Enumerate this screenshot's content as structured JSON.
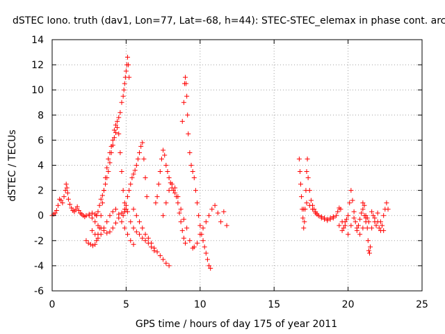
{
  "chart_data": {
    "type": "scatter",
    "title": "dSTEC Iono. truth (dav1, Lon=77, Lat=-68, h=44): STEC-STEC_elemax in phase cont. arc",
    "xlabel": "GPS time / hours of day 175 of year 2011",
    "ylabel": "dSTEC  / TECUs",
    "xlim": [
      0,
      25
    ],
    "ylim": [
      -6,
      14
    ],
    "xticks": [
      0,
      5,
      10,
      15,
      20,
      25
    ],
    "yticks": [
      -6,
      -4,
      -2,
      0,
      2,
      4,
      6,
      8,
      10,
      12,
      14
    ],
    "grid": true,
    "marker": "+",
    "color": "#ff0000",
    "series": [
      {
        "x": [
          0.0,
          0.1,
          0.2,
          0.3,
          0.4,
          0.5,
          0.6,
          0.7,
          0.8,
          0.9,
          0.95,
          1.0,
          1.05,
          1.1,
          1.2,
          1.3,
          1.4,
          1.5,
          1.6,
          1.7,
          1.8,
          1.9,
          2.0,
          2.1,
          2.2,
          2.3,
          2.5,
          2.7,
          2.9,
          3.0
        ],
        "y": [
          0.0,
          0.1,
          0.2,
          0.4,
          0.8,
          1.3,
          1.2,
          1.0,
          1.5,
          2.0,
          2.5,
          2.2,
          1.8,
          1.3,
          0.9,
          0.6,
          0.4,
          0.3,
          0.5,
          0.7,
          0.4,
          0.2,
          0.1,
          0.0,
          -0.1,
          0.0,
          0.1,
          0.2,
          0.1,
          0.0
        ]
      },
      {
        "x": [
          2.3,
          2.45,
          2.6,
          2.75,
          2.9,
          3.0,
          3.1,
          3.2,
          3.3,
          3.4,
          3.5,
          3.6,
          3.7,
          3.8,
          3.9,
          4.0,
          4.1,
          4.2,
          4.3,
          4.4,
          4.5,
          4.6,
          4.7,
          4.8,
          4.85,
          4.9,
          4.95,
          5.0,
          5.05,
          5.1,
          5.15,
          5.2
        ],
        "y": [
          -2.0,
          -2.2,
          -2.3,
          -2.4,
          -2.3,
          -2.0,
          -1.5,
          -1.0,
          0.0,
          1.0,
          2.0,
          3.0,
          3.8,
          4.5,
          5.0,
          5.5,
          6.0,
          6.8,
          7.2,
          7.5,
          7.8,
          8.2,
          9.0,
          9.5,
          10.0,
          10.5,
          11.0,
          11.5,
          12.0,
          12.6,
          12.0,
          11.0
        ]
      },
      {
        "x": [
          3.0,
          3.1,
          3.2,
          3.3,
          3.4,
          3.5,
          3.6,
          3.7,
          3.8,
          3.9,
          4.0,
          4.1,
          4.2,
          4.3,
          4.4,
          4.5,
          4.6,
          4.7,
          4.8,
          4.9,
          5.0
        ],
        "y": [
          0.0,
          0.3,
          0.8,
          1.3,
          1.6,
          2.0,
          2.5,
          3.0,
          3.5,
          4.2,
          5.0,
          5.6,
          6.2,
          6.6,
          7.0,
          6.5,
          5.0,
          3.5,
          2.0,
          1.0,
          0.5
        ]
      },
      {
        "x": [
          2.5,
          2.7,
          2.9,
          3.1,
          3.3,
          3.5,
          3.7,
          3.9,
          4.1,
          4.3,
          4.5,
          4.7,
          4.9,
          5.1,
          5.3,
          5.5,
          5.7,
          5.9,
          6.1,
          6.3,
          6.5,
          6.7,
          6.9
        ],
        "y": [
          0.0,
          -0.2,
          -0.5,
          -0.8,
          -1.0,
          -1.2,
          -1.4,
          -1.3,
          -1.0,
          -0.6,
          -0.2,
          0.2,
          0.5,
          0.3,
          -0.5,
          -1.0,
          -1.3,
          -1.5,
          -1.8,
          -2.0,
          -2.2,
          -2.5,
          -2.8
        ]
      },
      {
        "x": [
          2.7,
          2.9,
          3.1,
          3.3,
          3.5,
          3.7,
          3.9,
          4.1,
          4.3,
          4.5,
          4.7,
          4.9,
          5.1,
          5.3,
          5.5
        ],
        "y": [
          -1.2,
          -1.5,
          -1.8,
          -1.5,
          -1.0,
          -0.5,
          0.0,
          0.3,
          0.5,
          0.1,
          -0.5,
          -1.0,
          -1.5,
          -2.0,
          -2.3
        ]
      },
      {
        "x": [
          4.8,
          4.9,
          5.0,
          5.1,
          5.2,
          5.3,
          5.4,
          5.5,
          5.6,
          5.7,
          5.8,
          5.9,
          6.0,
          6.1,
          6.2,
          6.3,
          6.4
        ],
        "y": [
          0.0,
          0.3,
          0.8,
          1.5,
          2.0,
          2.5,
          3.0,
          3.3,
          3.6,
          4.0,
          4.5,
          5.0,
          5.5,
          5.8,
          4.5,
          3.0,
          1.5
        ]
      },
      {
        "x": [
          5.5,
          5.7,
          5.9,
          6.1,
          6.3,
          6.5,
          6.7,
          6.9,
          7.1,
          7.3,
          7.5,
          7.7,
          7.9
        ],
        "y": [
          0.5,
          0.0,
          -0.5,
          -1.0,
          -1.5,
          -1.8,
          -2.2,
          -2.6,
          -2.9,
          -3.2,
          -3.5,
          -3.8,
          -4.0
        ]
      },
      {
        "x": [
          7.0,
          7.1,
          7.2,
          7.3,
          7.4,
          7.5,
          7.6,
          7.7,
          7.8,
          7.9,
          8.0,
          8.1,
          8.2,
          8.3,
          8.4,
          8.5,
          8.6,
          8.7,
          8.8,
          8.9,
          9.0
        ],
        "y": [
          1.0,
          1.5,
          2.5,
          3.5,
          4.5,
          5.2,
          4.8,
          4.0,
          3.5,
          3.0,
          2.6,
          2.2,
          2.0,
          1.8,
          1.5,
          1.0,
          0.2,
          -0.5,
          -1.2,
          -1.8,
          -2.2
        ]
      },
      {
        "x": [
          7.5,
          7.7,
          7.9,
          8.1,
          8.3,
          8.5,
          8.7,
          8.9,
          9.1,
          9.3,
          9.5
        ],
        "y": [
          0.0,
          1.0,
          2.0,
          2.5,
          2.2,
          1.5,
          0.5,
          -0.3,
          -1.0,
          -2.0,
          -2.6
        ]
      },
      {
        "x": [
          8.8,
          8.9,
          8.95,
          9.0,
          9.05,
          9.1,
          9.15,
          9.2,
          9.3,
          9.4,
          9.5,
          9.6,
          9.7,
          9.8,
          9.9,
          10.0,
          10.1,
          10.2,
          10.3,
          10.4,
          10.5,
          10.6,
          10.7
        ],
        "y": [
          7.5,
          9.0,
          10.5,
          11.0,
          10.5,
          9.5,
          8.0,
          6.5,
          5.0,
          4.0,
          3.5,
          3.0,
          2.0,
          1.0,
          0.0,
          -0.8,
          -1.5,
          -2.0,
          -2.5,
          -3.0,
          -3.5,
          -4.0,
          -4.2
        ]
      },
      {
        "x": [
          9.6,
          9.8,
          10.0,
          10.2,
          10.4,
          10.6,
          10.8,
          11.0,
          11.2,
          11.4,
          11.6,
          11.8
        ],
        "y": [
          -2.5,
          -2.2,
          -1.5,
          -1.0,
          -0.5,
          0.0,
          0.5,
          0.8,
          0.2,
          -0.5,
          0.3,
          -0.8
        ]
      },
      {
        "x": [
          16.7,
          16.75,
          16.8,
          16.85,
          16.9,
          16.95,
          17.0,
          17.05,
          17.1,
          17.15,
          17.2,
          17.25,
          17.3,
          17.4,
          17.5,
          17.6,
          17.7,
          17.8,
          17.9,
          18.0,
          18.2,
          18.4,
          18.6,
          18.8,
          19.0
        ],
        "y": [
          4.5,
          3.5,
          2.5,
          1.5,
          0.5,
          -0.2,
          -1.0,
          -0.5,
          0.5,
          2.0,
          3.5,
          4.5,
          3.0,
          2.0,
          1.2,
          0.8,
          0.5,
          0.3,
          0.1,
          0.0,
          -0.1,
          -0.2,
          -0.3,
          -0.2,
          -0.1
        ]
      },
      {
        "x": [
          17.0,
          17.2,
          17.4,
          17.6,
          17.8,
          18.0,
          18.2,
          18.4,
          18.6,
          18.8,
          19.0
        ],
        "y": [
          0.5,
          1.0,
          0.8,
          0.5,
          0.2,
          0.0,
          -0.2,
          -0.3,
          -0.4,
          -0.3,
          -0.2
        ]
      },
      {
        "x": [
          19.2,
          19.3,
          19.4,
          19.5,
          19.6,
          19.7,
          19.8,
          19.9,
          20.0,
          20.1,
          20.2,
          20.3,
          20.4,
          20.5,
          20.6,
          20.7,
          20.8,
          20.9,
          21.0,
          21.1,
          21.2,
          21.3
        ],
        "y": [
          0.0,
          0.3,
          0.6,
          0.5,
          -0.5,
          -1.0,
          -0.8,
          -0.3,
          0.0,
          1.0,
          2.0,
          1.2,
          0.3,
          -0.5,
          -1.0,
          -0.8,
          -0.3,
          0.2,
          0.5,
          0.0,
          -0.5,
          -0.2
        ]
      },
      {
        "x": [
          19.4,
          19.6,
          19.8,
          20.0,
          20.2,
          20.4,
          20.6,
          20.8,
          21.0
        ],
        "y": [
          -0.8,
          -1.2,
          -0.5,
          -1.5,
          -0.8,
          -0.2,
          -1.2,
          -1.5,
          -1.0
        ]
      },
      {
        "x": [
          21.0,
          21.1,
          21.2,
          21.3,
          21.35,
          21.4,
          21.45,
          21.5,
          21.6,
          21.7,
          21.8,
          21.9,
          22.0,
          22.1,
          22.2,
          22.3,
          22.4,
          22.5,
          22.6,
          22.7
        ],
        "y": [
          1.0,
          0.8,
          0.0,
          -1.0,
          -2.0,
          -2.8,
          -3.0,
          -2.5,
          -1.0,
          0.0,
          -0.5,
          -0.8,
          -0.5,
          -1.0,
          -1.2,
          -0.8,
          0.0,
          0.5,
          1.0,
          0.5
        ]
      },
      {
        "x": [
          21.2,
          21.4,
          21.6,
          21.8,
          22.0,
          22.2,
          22.4
        ],
        "y": [
          -0.2,
          -0.5,
          0.3,
          -0.2,
          0.2,
          -0.5,
          -1.2
        ]
      }
    ]
  }
}
